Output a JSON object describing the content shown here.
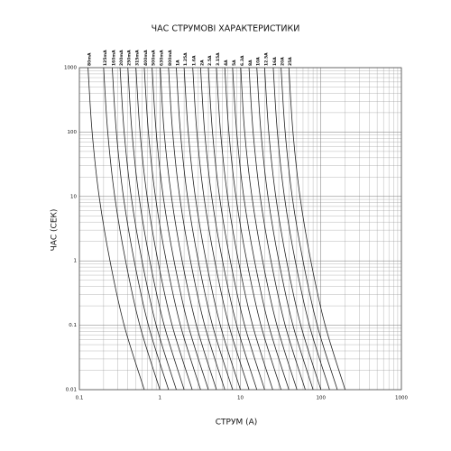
{
  "chart_data": {
    "type": "line",
    "title": "ЧАС СТРУМОВІ ХАРАКТЕРИСТИКИ",
    "x_label": "СТРУМ (А)",
    "y_label": "ЧАС (СЕК)",
    "x_log": true,
    "y_log": true,
    "grid": true,
    "xlim": [
      0.1,
      1000
    ],
    "ylim": [
      0.01,
      1000
    ],
    "xticks": [
      0.1,
      1,
      10,
      100,
      1000
    ],
    "yticks": [
      0.01,
      0.1,
      1,
      10,
      100,
      1000
    ],
    "series": [
      {
        "name": "80mA",
        "color": "#222",
        "x": [
          0.128,
          0.144,
          0.176,
          0.24,
          0.36,
          0.64
        ],
        "values": [
          1000,
          100,
          10,
          1,
          0.1,
          0.01
        ]
      },
      {
        "name": "125mA",
        "color": "#222",
        "x": [
          0.2,
          0.225,
          0.275,
          0.375,
          0.563,
          1
        ],
        "values": [
          1000,
          100,
          10,
          1,
          0.1,
          0.01
        ]
      },
      {
        "name": "160mA",
        "color": "#222",
        "x": [
          0.256,
          0.288,
          0.352,
          0.48,
          0.72,
          1.28
        ],
        "values": [
          1000,
          100,
          10,
          1,
          0.1,
          0.01
        ]
      },
      {
        "name": "200mA",
        "color": "#222",
        "x": [
          0.32,
          0.36,
          0.44,
          0.6,
          0.9,
          1.6
        ],
        "values": [
          1000,
          100,
          10,
          1,
          0.1,
          0.01
        ]
      },
      {
        "name": "250mA",
        "color": "#222",
        "x": [
          0.4,
          0.45,
          0.55,
          0.75,
          1.13,
          2
        ],
        "values": [
          1000,
          100,
          10,
          1,
          0.1,
          0.01
        ]
      },
      {
        "name": "315mA",
        "color": "#222",
        "x": [
          0.504,
          0.567,
          0.693,
          0.945,
          1.42,
          2.52
        ],
        "values": [
          1000,
          100,
          10,
          1,
          0.1,
          0.01
        ]
      },
      {
        "name": "400mA",
        "color": "#222",
        "x": [
          0.64,
          0.72,
          0.88,
          1.2,
          1.8,
          3.2
        ],
        "values": [
          1000,
          100,
          10,
          1,
          0.1,
          0.01
        ]
      },
      {
        "name": "500mA",
        "color": "#222",
        "x": [
          0.8,
          0.9,
          1.1,
          1.5,
          2.25,
          4
        ],
        "values": [
          1000,
          100,
          10,
          1,
          0.1,
          0.01
        ]
      },
      {
        "name": "630mA",
        "color": "#222",
        "x": [
          1.01,
          1.13,
          1.39,
          1.89,
          2.84,
          5.04
        ],
        "values": [
          1000,
          100,
          10,
          1,
          0.1,
          0.01
        ]
      },
      {
        "name": "800mA",
        "color": "#222",
        "x": [
          1.28,
          1.44,
          1.76,
          2.4,
          3.6,
          6.4
        ],
        "values": [
          1000,
          100,
          10,
          1,
          0.1,
          0.01
        ]
      },
      {
        "name": "1A",
        "color": "#222",
        "x": [
          1.6,
          1.8,
          2.2,
          3,
          4.5,
          8
        ],
        "values": [
          1000,
          100,
          10,
          1,
          0.1,
          0.01
        ]
      },
      {
        "name": "1.25A",
        "color": "#222",
        "x": [
          2,
          2.25,
          2.75,
          3.75,
          5.63,
          10
        ],
        "values": [
          1000,
          100,
          10,
          1,
          0.1,
          0.01
        ]
      },
      {
        "name": "1.6A",
        "color": "#222",
        "x": [
          2.56,
          2.88,
          3.52,
          4.8,
          7.2,
          12.8
        ],
        "values": [
          1000,
          100,
          10,
          1,
          0.1,
          0.01
        ]
      },
      {
        "name": "2A",
        "color": "#222",
        "x": [
          3.2,
          3.6,
          4.4,
          6,
          9,
          16
        ],
        "values": [
          1000,
          100,
          10,
          1,
          0.1,
          0.01
        ]
      },
      {
        "name": "2.5A",
        "color": "#222",
        "x": [
          4,
          4.5,
          5.5,
          7.5,
          11.3,
          20
        ],
        "values": [
          1000,
          100,
          10,
          1,
          0.1,
          0.01
        ]
      },
      {
        "name": "3.15A",
        "color": "#222",
        "x": [
          5.04,
          5.67,
          6.93,
          9.45,
          14.2,
          25.2
        ],
        "values": [
          1000,
          100,
          10,
          1,
          0.1,
          0.01
        ]
      },
      {
        "name": "4A",
        "color": "#222",
        "x": [
          6.4,
          7.2,
          8.8,
          12,
          18,
          32
        ],
        "values": [
          1000,
          100,
          10,
          1,
          0.1,
          0.01
        ]
      },
      {
        "name": "5A",
        "color": "#222",
        "x": [
          8,
          9,
          11,
          15,
          22.5,
          40
        ],
        "values": [
          1000,
          100,
          10,
          1,
          0.1,
          0.01
        ]
      },
      {
        "name": "6.3A",
        "color": "#222",
        "x": [
          10.1,
          11.3,
          13.9,
          18.9,
          28.4,
          50.4
        ],
        "values": [
          1000,
          100,
          10,
          1,
          0.1,
          0.01
        ]
      },
      {
        "name": "8A",
        "color": "#222",
        "x": [
          12.8,
          14.4,
          17.6,
          24,
          36,
          64
        ],
        "values": [
          1000,
          100,
          10,
          1,
          0.1,
          0.01
        ]
      },
      {
        "name": "10A",
        "color": "#222",
        "x": [
          16,
          18,
          22,
          30,
          45,
          80
        ],
        "values": [
          1000,
          100,
          10,
          1,
          0.1,
          0.01
        ]
      },
      {
        "name": "12.5A",
        "color": "#222",
        "x": [
          20,
          22.5,
          27.5,
          37.5,
          56.3,
          100
        ],
        "values": [
          1000,
          100,
          10,
          1,
          0.1,
          0.01
        ]
      },
      {
        "name": "16A",
        "color": "#222",
        "x": [
          25.6,
          28.8,
          35.2,
          48,
          72,
          128
        ],
        "values": [
          1000,
          100,
          10,
          1,
          0.1,
          0.01
        ]
      },
      {
        "name": "20A",
        "color": "#222",
        "x": [
          32,
          36,
          44,
          60,
          90,
          160
        ],
        "values": [
          1000,
          100,
          10,
          1,
          0.1,
          0.01
        ]
      },
      {
        "name": "25A",
        "color": "#222",
        "x": [
          40,
          45,
          55,
          75,
          113,
          200
        ],
        "values": [
          1000,
          100,
          10,
          1,
          0.1,
          0.01
        ]
      }
    ]
  }
}
